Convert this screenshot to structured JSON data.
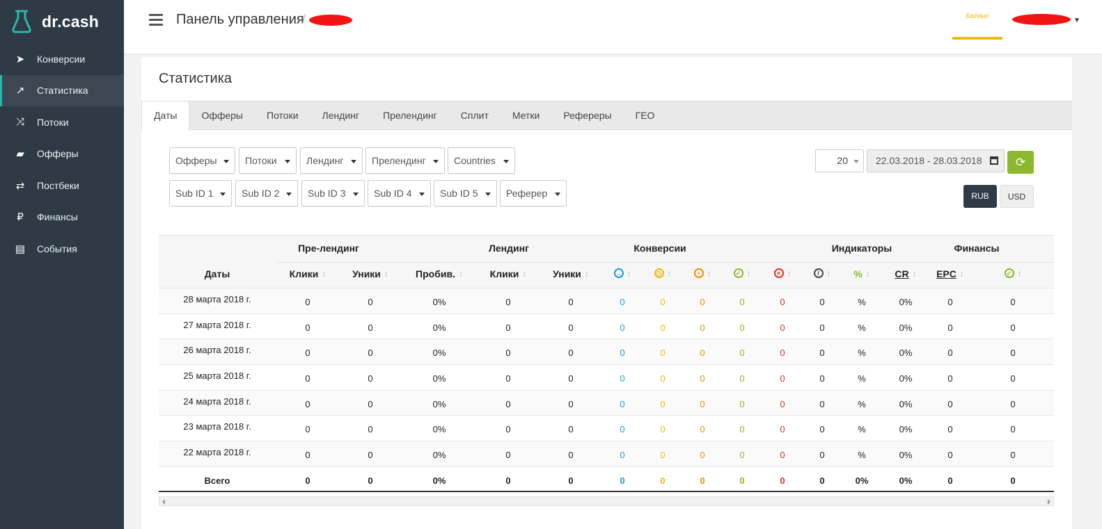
{
  "brand": {
    "name": "dr.cash",
    "accent": "#2ab7a9"
  },
  "sidebar": {
    "items": [
      {
        "label": "Конверсии",
        "icon": "paper-plane-icon"
      },
      {
        "label": "Статистика",
        "icon": "line-chart-icon",
        "active": true
      },
      {
        "label": "Потоки",
        "icon": "shuffle-icon"
      },
      {
        "label": "Офферы",
        "icon": "briefcase-icon"
      },
      {
        "label": "Постбеки",
        "icon": "retweet-icon"
      },
      {
        "label": "Финансы",
        "icon": "ruble-icon"
      },
      {
        "label": "События",
        "icon": "newspaper-icon"
      }
    ]
  },
  "header": {
    "title": "Панель управления",
    "separator": "/",
    "balance_label": "Баланс"
  },
  "panel": {
    "title": "Статистика",
    "tabs": [
      "Даты",
      "Офферы",
      "Потоки",
      "Лендинг",
      "Прелендинг",
      "Сплит",
      "Метки",
      "Рефереры",
      "ГЕО"
    ],
    "active_tab": "Даты"
  },
  "filters": {
    "row1": [
      "Офферы",
      "Потоки",
      "Лендинг",
      "Прелендинг",
      "Countries"
    ],
    "row2": [
      "Sub ID 1",
      "Sub ID 2",
      "Sub ID 3",
      "Sub ID 4",
      "Sub ID 5",
      "Реферер"
    ]
  },
  "controls": {
    "per_page": "20",
    "date_range": "22.03.2018 - 28.03.2018",
    "currencies": [
      "RUB",
      "USD"
    ],
    "active_currency": "RUB"
  },
  "table": {
    "groups": [
      "Пре-лендинг",
      "Лендинг",
      "Конверсии",
      "Индикаторы",
      "Финансы"
    ],
    "date_header": "Даты",
    "columns": [
      "Клики",
      "Уники",
      "Пробив.",
      "Клики",
      "Уники",
      "",
      "",
      "",
      "",
      "",
      "",
      "%",
      "CR",
      "EPC",
      ""
    ],
    "column_icons": [
      "",
      "",
      "",
      "",
      "",
      "arrow-right-circle-icon",
      "clock-icon",
      "hold-circle-icon",
      "check-circle-icon",
      "cross-circle-icon",
      "ban-icon",
      "",
      "",
      "",
      "check-circle-icon"
    ],
    "rows": [
      {
        "date": "28 марта 2018 г.",
        "values": [
          "0",
          "0",
          "0%",
          "0",
          "0",
          "0",
          "0",
          "0",
          "0",
          "0",
          "0",
          "%",
          "0%",
          "0",
          "0"
        ]
      },
      {
        "date": "27 марта 2018 г.",
        "values": [
          "0",
          "0",
          "0%",
          "0",
          "0",
          "0",
          "0",
          "0",
          "0",
          "0",
          "0",
          "%",
          "0%",
          "0",
          "0"
        ]
      },
      {
        "date": "26 марта 2018 г.",
        "values": [
          "0",
          "0",
          "0%",
          "0",
          "0",
          "0",
          "0",
          "0",
          "0",
          "0",
          "0",
          "%",
          "0%",
          "0",
          "0"
        ]
      },
      {
        "date": "25 марта 2018 г.",
        "values": [
          "0",
          "0",
          "0%",
          "0",
          "0",
          "0",
          "0",
          "0",
          "0",
          "0",
          "0",
          "%",
          "0%",
          "0",
          "0"
        ]
      },
      {
        "date": "24 марта 2018 г.",
        "values": [
          "0",
          "0",
          "0%",
          "0",
          "0",
          "0",
          "0",
          "0",
          "0",
          "0",
          "0",
          "%",
          "0%",
          "0",
          "0"
        ]
      },
      {
        "date": "23 марта 2018 г.",
        "values": [
          "0",
          "0",
          "0%",
          "0",
          "0",
          "0",
          "0",
          "0",
          "0",
          "0",
          "0",
          "%",
          "0%",
          "0",
          "0"
        ]
      },
      {
        "date": "22 марта 2018 г.",
        "values": [
          "0",
          "0",
          "0%",
          "0",
          "0",
          "0",
          "0",
          "0",
          "0",
          "0",
          "0",
          "%",
          "0%",
          "0",
          "0"
        ]
      }
    ],
    "total": {
      "label": "Всего",
      "values": [
        "0",
        "0",
        "0%",
        "0",
        "0",
        "0",
        "0",
        "0",
        "0",
        "0",
        "0",
        "0%",
        "0%",
        "0",
        "0"
      ]
    }
  },
  "colors": {
    "sidebar_bg": "#2e3a45",
    "status_blue": "#1d9ad6",
    "status_yellow": "#f0b90b",
    "status_orange": "#f08c00",
    "status_green": "#8bb82c",
    "status_red": "#d9341c",
    "status_gray": "#444444"
  }
}
